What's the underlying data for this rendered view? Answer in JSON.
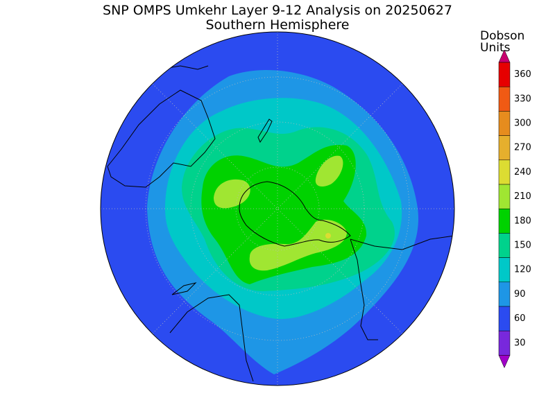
{
  "title": "SNP OMPS Umkehr Layer 9-12 Analysis on 20250627",
  "subtitle": "Southern Hemisphere",
  "colorbar": {
    "label_lines": [
      "Dobson",
      "Units"
    ],
    "ticks": [
      360,
      330,
      300,
      270,
      240,
      210,
      180,
      150,
      120,
      90,
      60,
      30
    ],
    "colors": [
      "#e60000",
      "#f05a14",
      "#e68c1e",
      "#e6af2d",
      "#dcdc32",
      "#a0e632",
      "#00d200",
      "#00d28c",
      "#00c8c8",
      "#1e96e6",
      "#2b4bf0",
      "#7828dc"
    ],
    "over_color": "#c8006e",
    "under_color": "#a000c8"
  }
}
